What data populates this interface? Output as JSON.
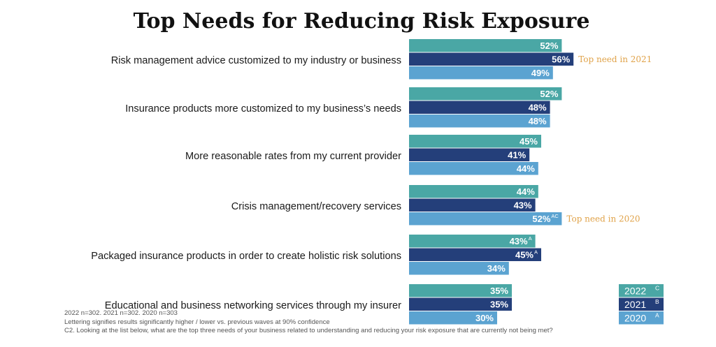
{
  "chart_data": {
    "type": "bar",
    "orientation": "horizontal",
    "title": "Top Needs for Reducing Risk Exposure",
    "categories": [
      "Risk management advice customized to my industry or business",
      "Insurance products more customized to my business’s needs",
      "More reasonable rates from my current provider",
      "Crisis management/recovery services",
      "Packaged insurance products in order to create holistic risk solutions",
      "Educational and business networking services through my insurer"
    ],
    "series": [
      {
        "name": "2022",
        "legend_letter": "C",
        "color": "#4aa7a5",
        "values": [
          52,
          52,
          45,
          44,
          43,
          35
        ],
        "labels": [
          "52%",
          "52%",
          "45%",
          "44%",
          "43%",
          "35%"
        ],
        "superscripts": [
          "",
          "",
          "",
          "",
          "A",
          ""
        ]
      },
      {
        "name": "2021",
        "legend_letter": "B",
        "color": "#243f7a",
        "values": [
          56,
          48,
          41,
          43,
          45,
          35
        ],
        "labels": [
          "56%",
          "48%",
          "41%",
          "43%",
          "45%",
          "35%"
        ],
        "superscripts": [
          "",
          "",
          "",
          "",
          "A",
          ""
        ]
      },
      {
        "name": "2020",
        "legend_letter": "A",
        "color": "#5ba3d1",
        "values": [
          49,
          48,
          44,
          52,
          34,
          30
        ],
        "labels": [
          "49%",
          "48%",
          "44%",
          "52%",
          "34%",
          "30%"
        ],
        "superscripts": [
          "",
          "",
          "",
          "AC",
          "",
          ""
        ]
      }
    ],
    "annotations": [
      {
        "category_index": 0,
        "series_index": 1,
        "text": "Top need in 2021"
      },
      {
        "category_index": 3,
        "series_index": 2,
        "text": "Top need in 2020"
      }
    ],
    "legend_position": "bottom-right",
    "annotation_color": "#e0a34a",
    "grid": false
  },
  "footnotes": [
    "2022 n=302. 2021 n=302. 2020 n=303",
    "Lettering signifies results significantly higher / lower vs. previous waves at 90% confidence",
    "C2. Looking at the list below, what are the top three needs of your business related to understanding and reducing your risk exposure that are currently not being met?"
  ]
}
